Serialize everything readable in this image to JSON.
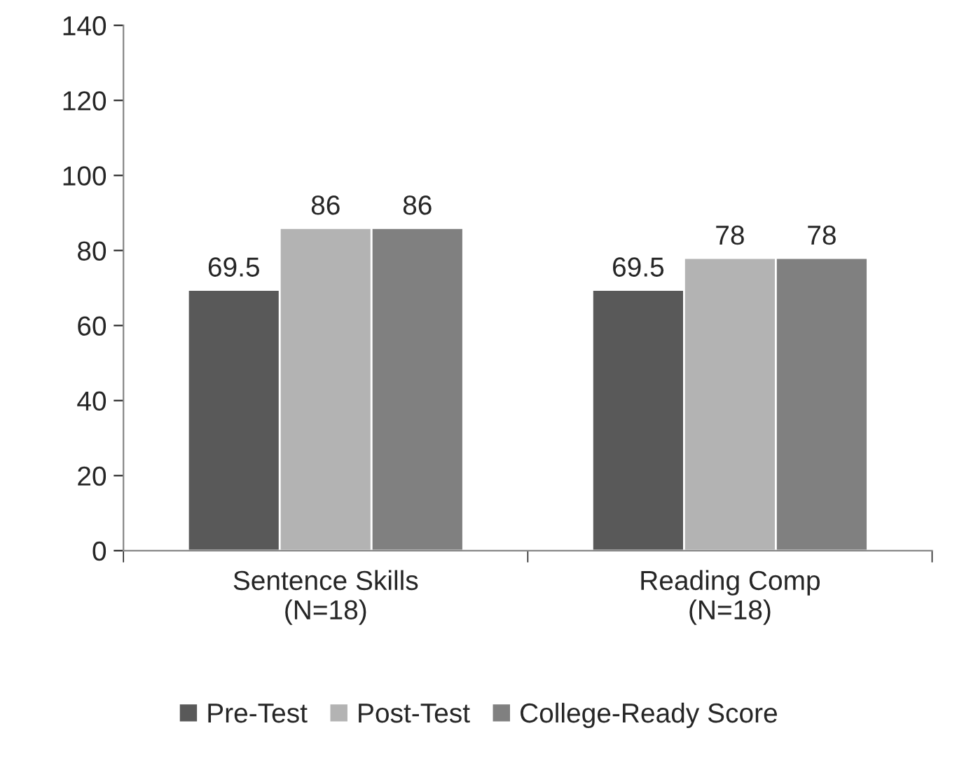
{
  "chart_data": {
    "type": "bar",
    "categories": [
      "Sentence Skills\n(N=18)",
      "Reading Comp\n(N=18)"
    ],
    "series": [
      {
        "name": "Pre-Test",
        "color": "#595959",
        "values": [
          69.5,
          69.5
        ]
      },
      {
        "name": "Post-Test",
        "color": "#b3b3b3",
        "values": [
          86,
          78
        ]
      },
      {
        "name": "College-Ready Score",
        "color": "#808080",
        "values": [
          86,
          78
        ]
      }
    ],
    "ylim": [
      0,
      140
    ],
    "yticks": [
      0,
      20,
      40,
      60,
      80,
      100,
      120,
      140
    ],
    "data_labels": true,
    "grid": false,
    "legend": "bottom"
  }
}
